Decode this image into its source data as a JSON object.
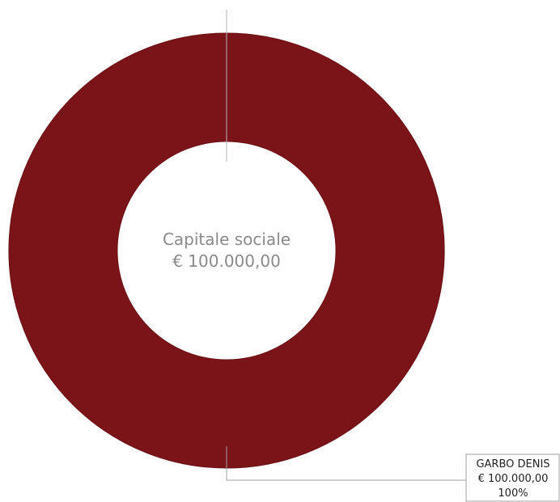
{
  "chart_data": {
    "type": "pie",
    "variant": "donut",
    "center_label": {
      "title": "Capitale sociale",
      "value": "€ 100.000,00"
    },
    "slices": [
      {
        "label": "GARBO DENIS",
        "value": 100000,
        "value_label": "€ 100.000,00",
        "percent": 100,
        "percent_label": "100%",
        "color": "#7b1418"
      }
    ],
    "legend": "none",
    "grid": false
  }
}
